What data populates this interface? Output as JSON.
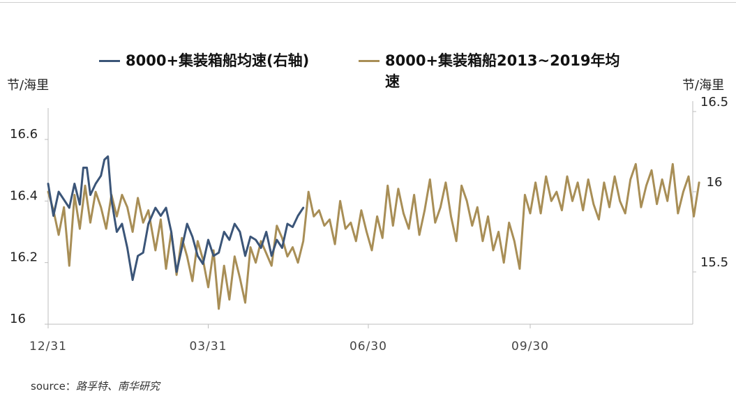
{
  "chart_data": {
    "type": "line",
    "legend_position": "top",
    "y_left_unit": "节/海里",
    "y_right_unit": "节/海里",
    "y_left_ticks": [
      "16.6",
      "16.4",
      "16.2",
      "16"
    ],
    "y_right_ticks": [
      "16.5",
      "16",
      "15.5"
    ],
    "ylim_left": [
      16.0,
      16.7
    ],
    "ylim_right": [
      15.1,
      16.5
    ],
    "x_ticks": [
      "12/31",
      "03/31",
      "06/30",
      "09/30"
    ],
    "x_start": "2019-12-31",
    "grid": false,
    "series": [
      {
        "name": "8000+集装箱船均速(右轴)",
        "axis": "right",
        "color": "#3b5578",
        "values": [
          [
            "2019-12-31",
            16.05
          ],
          [
            "2020-01-03",
            15.85
          ],
          [
            "2020-01-06",
            16.0
          ],
          [
            "2020-01-09",
            15.95
          ],
          [
            "2020-01-12",
            15.9
          ],
          [
            "2020-01-15",
            16.05
          ],
          [
            "2020-01-18",
            15.92
          ],
          [
            "2020-01-20",
            16.15
          ],
          [
            "2020-01-22",
            16.15
          ],
          [
            "2020-01-24",
            15.98
          ],
          [
            "2020-01-27",
            16.05
          ],
          [
            "2020-01-30",
            16.1
          ],
          [
            "2020-02-01",
            16.2
          ],
          [
            "2020-02-03",
            16.22
          ],
          [
            "2020-02-05",
            15.95
          ],
          [
            "2020-02-08",
            15.75
          ],
          [
            "2020-02-11",
            15.8
          ],
          [
            "2020-02-14",
            15.65
          ],
          [
            "2020-02-17",
            15.45
          ],
          [
            "2020-02-20",
            15.6
          ],
          [
            "2020-02-23",
            15.62
          ],
          [
            "2020-02-26",
            15.8
          ],
          [
            "2020-03-01",
            15.9
          ],
          [
            "2020-03-04",
            15.85
          ],
          [
            "2020-03-07",
            15.9
          ],
          [
            "2020-03-10",
            15.75
          ],
          [
            "2020-03-13",
            15.5
          ],
          [
            "2020-03-16",
            15.65
          ],
          [
            "2020-03-19",
            15.8
          ],
          [
            "2020-03-22",
            15.72
          ],
          [
            "2020-03-25",
            15.6
          ],
          [
            "2020-03-28",
            15.55
          ],
          [
            "2020-03-31",
            15.7
          ],
          [
            "2020-04-03",
            15.6
          ],
          [
            "2020-04-06",
            15.62
          ],
          [
            "2020-04-09",
            15.75
          ],
          [
            "2020-04-12",
            15.7
          ],
          [
            "2020-04-15",
            15.8
          ],
          [
            "2020-04-18",
            15.75
          ],
          [
            "2020-04-21",
            15.6
          ],
          [
            "2020-04-24",
            15.72
          ],
          [
            "2020-04-27",
            15.7
          ],
          [
            "2020-04-30",
            15.65
          ],
          [
            "2020-05-03",
            15.75
          ],
          [
            "2020-05-06",
            15.6
          ],
          [
            "2020-05-09",
            15.7
          ],
          [
            "2020-05-12",
            15.65
          ],
          [
            "2020-05-15",
            15.8
          ],
          [
            "2020-05-18",
            15.78
          ],
          [
            "2020-05-21",
            15.85
          ],
          [
            "2020-05-24",
            15.9
          ]
        ]
      },
      {
        "name": "8000+集装箱船2013~2019年均速",
        "axis": "left",
        "color": "#a88e56",
        "values": [
          [
            "2019-12-31",
            16.43
          ],
          [
            "2020-01-03",
            16.37
          ],
          [
            "2020-01-06",
            16.29
          ],
          [
            "2020-01-09",
            16.38
          ],
          [
            "2020-01-12",
            16.19
          ],
          [
            "2020-01-15",
            16.42
          ],
          [
            "2020-01-18",
            16.31
          ],
          [
            "2020-01-21",
            16.45
          ],
          [
            "2020-01-24",
            16.33
          ],
          [
            "2020-01-27",
            16.43
          ],
          [
            "2020-01-30",
            16.38
          ],
          [
            "2020-02-02",
            16.31
          ],
          [
            "2020-02-05",
            16.42
          ],
          [
            "2020-02-08",
            16.35
          ],
          [
            "2020-02-11",
            16.42
          ],
          [
            "2020-02-14",
            16.38
          ],
          [
            "2020-02-17",
            16.3
          ],
          [
            "2020-02-20",
            16.41
          ],
          [
            "2020-02-23",
            16.33
          ],
          [
            "2020-02-26",
            16.37
          ],
          [
            "2020-03-01",
            16.24
          ],
          [
            "2020-03-04",
            16.34
          ],
          [
            "2020-03-07",
            16.18
          ],
          [
            "2020-03-10",
            16.3
          ],
          [
            "2020-03-13",
            16.16
          ],
          [
            "2020-03-16",
            16.28
          ],
          [
            "2020-03-19",
            16.22
          ],
          [
            "2020-03-22",
            16.14
          ],
          [
            "2020-03-25",
            16.27
          ],
          [
            "2020-03-28",
            16.21
          ],
          [
            "2020-03-31",
            16.12
          ],
          [
            "2020-04-03",
            16.24
          ],
          [
            "2020-04-06",
            16.05
          ],
          [
            "2020-04-09",
            16.19
          ],
          [
            "2020-04-12",
            16.08
          ],
          [
            "2020-04-15",
            16.22
          ],
          [
            "2020-04-18",
            16.15
          ],
          [
            "2020-04-21",
            16.07
          ],
          [
            "2020-04-24",
            16.25
          ],
          [
            "2020-04-27",
            16.2
          ],
          [
            "2020-04-30",
            16.27
          ],
          [
            "2020-05-03",
            16.23
          ],
          [
            "2020-05-06",
            16.19
          ],
          [
            "2020-05-09",
            16.32
          ],
          [
            "2020-05-12",
            16.28
          ],
          [
            "2020-05-15",
            16.22
          ],
          [
            "2020-05-18",
            16.25
          ],
          [
            "2020-05-21",
            16.2
          ],
          [
            "2020-05-24",
            16.27
          ],
          [
            "2020-05-27",
            16.43
          ],
          [
            "2020-05-30",
            16.35
          ],
          [
            "2020-06-02",
            16.37
          ],
          [
            "2020-06-05",
            16.32
          ],
          [
            "2020-06-08",
            16.34
          ],
          [
            "2020-06-11",
            16.26
          ],
          [
            "2020-06-14",
            16.4
          ],
          [
            "2020-06-17",
            16.31
          ],
          [
            "2020-06-20",
            16.33
          ],
          [
            "2020-06-23",
            16.27
          ],
          [
            "2020-06-26",
            16.37
          ],
          [
            "2020-06-29",
            16.3
          ],
          [
            "2020-07-02",
            16.24
          ],
          [
            "2020-07-05",
            16.35
          ],
          [
            "2020-07-08",
            16.28
          ],
          [
            "2020-07-11",
            16.45
          ],
          [
            "2020-07-14",
            16.32
          ],
          [
            "2020-07-17",
            16.44
          ],
          [
            "2020-07-20",
            16.36
          ],
          [
            "2020-07-23",
            16.31
          ],
          [
            "2020-07-26",
            16.42
          ],
          [
            "2020-07-29",
            16.29
          ],
          [
            "2020-08-01",
            16.37
          ],
          [
            "2020-08-04",
            16.47
          ],
          [
            "2020-08-07",
            16.33
          ],
          [
            "2020-08-10",
            16.38
          ],
          [
            "2020-08-13",
            16.46
          ],
          [
            "2020-08-16",
            16.35
          ],
          [
            "2020-08-19",
            16.27
          ],
          [
            "2020-08-22",
            16.45
          ],
          [
            "2020-08-25",
            16.4
          ],
          [
            "2020-08-28",
            16.32
          ],
          [
            "2020-08-31",
            16.38
          ],
          [
            "2020-09-03",
            16.27
          ],
          [
            "2020-09-06",
            16.35
          ],
          [
            "2020-09-09",
            16.24
          ],
          [
            "2020-09-12",
            16.3
          ],
          [
            "2020-09-15",
            16.2
          ],
          [
            "2020-09-18",
            16.33
          ],
          [
            "2020-09-21",
            16.27
          ],
          [
            "2020-09-24",
            16.18
          ],
          [
            "2020-09-27",
            16.42
          ],
          [
            "2020-09-30",
            16.36
          ],
          [
            "2020-10-03",
            16.46
          ],
          [
            "2020-10-06",
            16.36
          ],
          [
            "2020-10-09",
            16.48
          ],
          [
            "2020-10-12",
            16.4
          ],
          [
            "2020-10-15",
            16.43
          ],
          [
            "2020-10-18",
            16.37
          ],
          [
            "2020-10-21",
            16.48
          ],
          [
            "2020-10-24",
            16.4
          ],
          [
            "2020-10-27",
            16.46
          ],
          [
            "2020-10-30",
            16.37
          ],
          [
            "2020-11-02",
            16.47
          ],
          [
            "2020-11-05",
            16.39
          ],
          [
            "2020-11-08",
            16.34
          ],
          [
            "2020-11-11",
            16.46
          ],
          [
            "2020-11-14",
            16.38
          ],
          [
            "2020-11-17",
            16.48
          ],
          [
            "2020-11-20",
            16.4
          ],
          [
            "2020-11-23",
            16.36
          ],
          [
            "2020-11-26",
            16.47
          ],
          [
            "2020-11-29",
            16.52
          ],
          [
            "2020-12-02",
            16.38
          ],
          [
            "2020-12-05",
            16.45
          ],
          [
            "2020-12-08",
            16.5
          ],
          [
            "2020-12-11",
            16.39
          ],
          [
            "2020-12-14",
            16.47
          ],
          [
            "2020-12-17",
            16.4
          ],
          [
            "2020-12-20",
            16.52
          ],
          [
            "2020-12-23",
            16.36
          ],
          [
            "2020-12-26",
            16.43
          ],
          [
            "2020-12-29",
            16.48
          ],
          [
            "2021-01-01",
            16.35
          ],
          [
            "2021-01-04",
            16.46
          ]
        ]
      }
    ]
  },
  "legend": {
    "item1": "8000+集装箱船均速(右轴)",
    "item2_line1": "8000+集装箱船2013~2019年均",
    "item2_line2": "速"
  },
  "source": {
    "label": "source：",
    "text": "路孚特、南华研究"
  }
}
